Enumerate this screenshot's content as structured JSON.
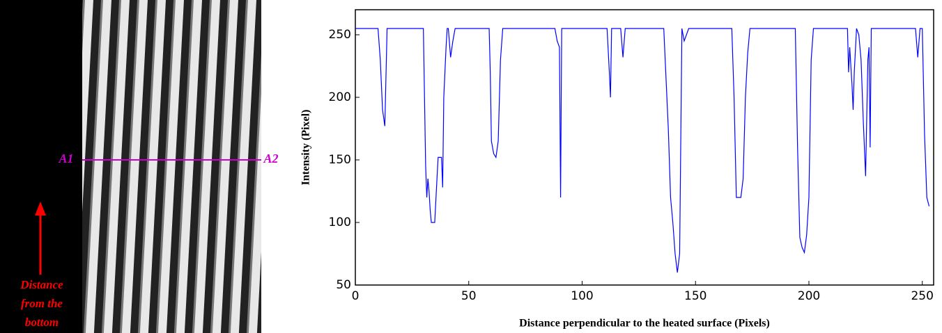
{
  "image_panel": {
    "line_start_label": "A1",
    "line_end_label": "A2",
    "arrow_label": [
      "Distance",
      "from the",
      "bottom"
    ]
  },
  "chart_data": {
    "type": "line",
    "x_label": "Distance perpendicular to the heated surface (Pixels)",
    "y_label": "Intensity (Pixel)",
    "x": [
      0,
      10,
      11,
      11.5,
      12,
      13,
      14,
      30,
      30.5,
      31,
      31.5,
      32,
      32.5,
      33,
      33.5,
      35,
      36,
      36.5,
      38,
      38.5,
      39,
      40,
      40.5,
      41,
      42,
      43,
      44,
      59,
      59.5,
      60,
      61,
      62,
      63,
      64,
      65,
      88,
      89,
      90,
      90.5,
      91,
      111,
      112,
      112.5,
      113,
      117,
      118,
      119,
      136,
      138,
      139,
      140,
      141,
      142,
      143,
      144,
      145,
      146,
      147,
      166,
      167,
      168,
      170,
      171,
      172,
      173,
      174,
      194,
      195,
      196,
      197,
      198,
      199,
      200,
      201,
      202,
      217,
      217.5,
      218,
      219,
      219.5,
      220,
      221,
      222,
      223,
      224,
      225,
      226,
      226.5,
      227,
      227.5,
      247,
      248,
      249,
      250,
      251,
      252,
      253
    ],
    "series": [
      {
        "name": "Intensity",
        "color": "#0000ff",
        "values": [
          255,
          255,
          230,
          210,
          190,
          177,
          255,
          255,
          200,
          145,
          120,
          135,
          125,
          110,
          100,
          100,
          135,
          152,
          152,
          128,
          200,
          240,
          255,
          255,
          232,
          245,
          255,
          255,
          220,
          165,
          155,
          152,
          165,
          230,
          255,
          255,
          245,
          240,
          120,
          255,
          255,
          220,
          200,
          255,
          255,
          232,
          255,
          255,
          175,
          120,
          100,
          75,
          60,
          75,
          255,
          245,
          250,
          255,
          255,
          200,
          120,
          120,
          135,
          200,
          235,
          255,
          255,
          160,
          88,
          80,
          76,
          90,
          120,
          230,
          255,
          255,
          220,
          240,
          210,
          190,
          220,
          255,
          250,
          230,
          180,
          137,
          230,
          240,
          160,
          255,
          255,
          232,
          255,
          255,
          170,
          120,
          113
        ]
      }
    ],
    "xlim": [
      0,
      255
    ],
    "ylim": [
      50,
      270
    ],
    "xticks": [
      0,
      50,
      100,
      150,
      200,
      250
    ],
    "yticks": [
      50,
      100,
      150,
      200,
      250
    ]
  }
}
